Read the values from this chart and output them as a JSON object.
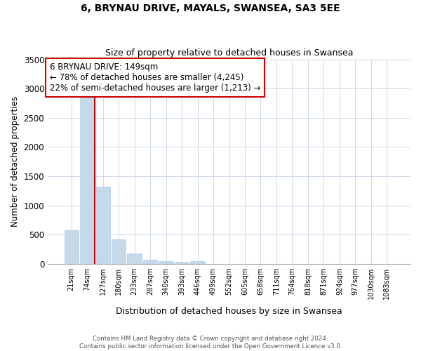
{
  "title": "6, BRYNAU DRIVE, MAYALS, SWANSEA, SA3 5EE",
  "subtitle": "Size of property relative to detached houses in Swansea",
  "xlabel": "Distribution of detached houses by size in Swansea",
  "ylabel": "Number of detached properties",
  "bar_labels": [
    "21sqm",
    "74sqm",
    "127sqm",
    "180sqm",
    "233sqm",
    "287sqm",
    "340sqm",
    "393sqm",
    "446sqm",
    "499sqm",
    "552sqm",
    "605sqm",
    "658sqm",
    "711sqm",
    "764sqm",
    "818sqm",
    "871sqm",
    "924sqm",
    "977sqm",
    "1030sqm",
    "1083sqm"
  ],
  "bar_values": [
    580,
    2920,
    1320,
    420,
    175,
    70,
    45,
    30,
    45,
    0,
    0,
    0,
    0,
    0,
    0,
    0,
    0,
    0,
    0,
    0,
    0
  ],
  "bar_color": "#c5d9ea",
  "bar_edge_color": "#b0cde0",
  "marker_line_color": "#cc0000",
  "annotation_title": "6 BRYNAU DRIVE: 149sqm",
  "annotation_line1": "← 78% of detached houses are smaller (4,245)",
  "annotation_line2": "22% of semi-detached houses are larger (1,213) →",
  "annotation_box_color": "#ffffff",
  "annotation_box_edge": "#cc0000",
  "ylim": [
    0,
    3500
  ],
  "yticks": [
    0,
    500,
    1000,
    1500,
    2000,
    2500,
    3000,
    3500
  ],
  "footer_line1": "Contains HM Land Registry data © Crown copyright and database right 2024.",
  "footer_line2": "Contains public sector information licensed under the Open Government Licence v3.0.",
  "background_color": "#ffffff",
  "grid_color": "#ccd9e8"
}
